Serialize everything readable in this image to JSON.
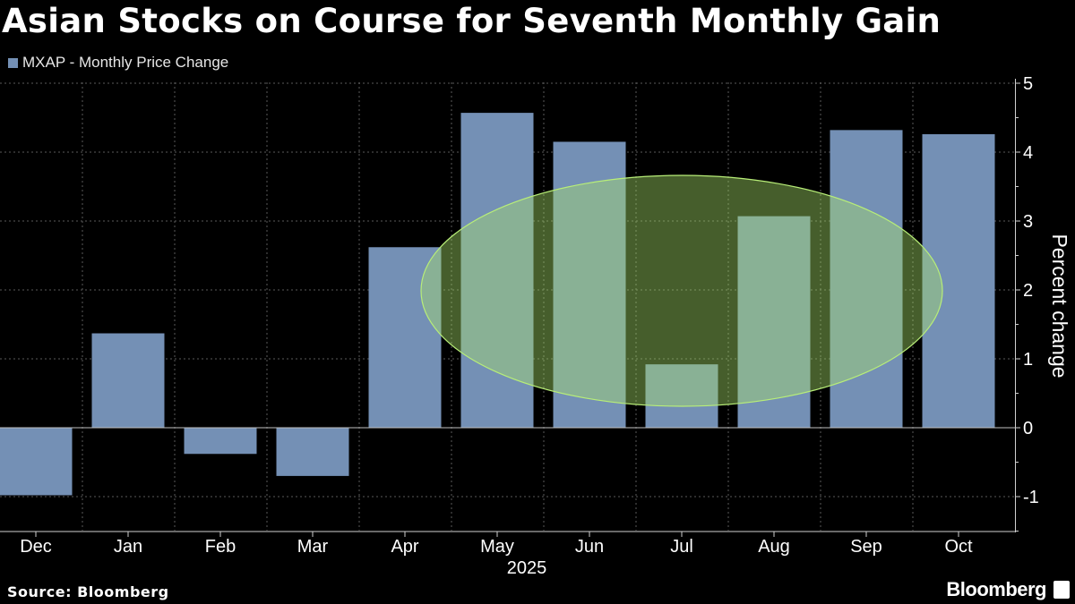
{
  "title": "Asian Stocks on Course for Seventh Monthly Gain",
  "source": "Source: Bloomberg",
  "brand": "Bloomberg",
  "colors": {
    "background": "#000000",
    "bar": "#7490b5",
    "highlight": "#a8e06a",
    "grid": "#5a5a5a"
  },
  "chart_data": {
    "type": "bar",
    "title": "Asian Stocks on Course for Seventh Monthly Gain",
    "series": [
      {
        "name": "MXAP - Monthly Price Change",
        "values": [
          -0.98,
          1.37,
          -0.38,
          -0.7,
          2.62,
          4.57,
          4.15,
          0.92,
          3.07,
          4.32,
          4.26
        ]
      }
    ],
    "categories": [
      "Dec",
      "Jan",
      "Feb",
      "Mar",
      "Apr",
      "May",
      "Jun",
      "Jul",
      "Aug",
      "Sep",
      "Oct"
    ],
    "year_label": "2025",
    "xlabel": "",
    "ylabel": "Percent change",
    "ylim": [
      -1.5,
      5
    ],
    "yticks": [
      -1,
      0,
      1,
      2,
      3,
      4,
      5
    ],
    "grid": true,
    "legend": "top-left",
    "annotation": "highlight ellipse over May–Oct gains"
  }
}
